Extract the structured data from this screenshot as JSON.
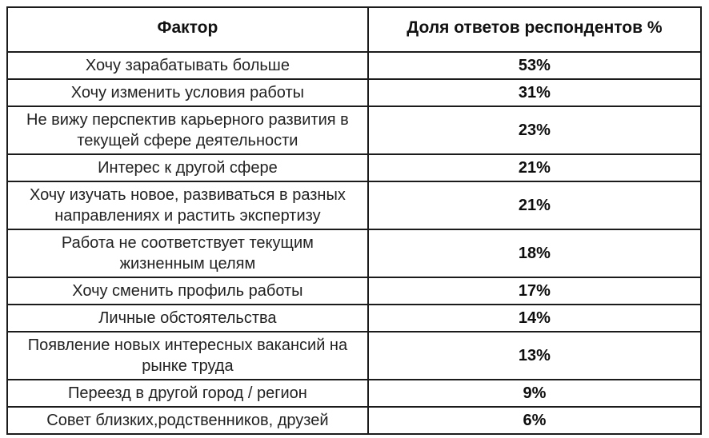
{
  "colors": {
    "border": "#1b1b1b",
    "text": "#111111",
    "background": "#ffffff"
  },
  "table": {
    "columns": {
      "factor": "Фактор",
      "value": "Доля ответов респондентов %"
    },
    "rows": [
      {
        "factor": "Хочу зарабатывать больше",
        "value": "53%"
      },
      {
        "factor": "Хочу изменить условия работы",
        "value": "31%"
      },
      {
        "factor": "Не вижу перспектив карьерного развития в текущей сфере деятельности",
        "value": "23%"
      },
      {
        "factor": "Интерес к другой сфере",
        "value": "21%"
      },
      {
        "factor": "Хочу изучать новое, развиваться в разных направлениях и растить экспертизу",
        "value": "21%"
      },
      {
        "factor": "Работа не соответствует текущим жизненным целям",
        "value": "18%"
      },
      {
        "factor": "Хочу сменить профиль работы",
        "value": "17%"
      },
      {
        "factor": "Личные обстоятельства",
        "value": "14%"
      },
      {
        "factor": "Появление новых интересных вакансий на рынке труда",
        "value": "13%"
      },
      {
        "factor": "Переезд в другой город / регион",
        "value": "9%"
      },
      {
        "factor": "Совет близких,родственников, друзей",
        "value": "6%"
      }
    ]
  },
  "chart_data": {
    "type": "table",
    "columns": [
      "Фактор",
      "Доля ответов респондентов %"
    ],
    "rows": [
      [
        "Хочу зарабатывать больше",
        "53%"
      ],
      [
        "Хочу изменить условия работы",
        "31%"
      ],
      [
        "Не вижу перспектив карьерного развития в текущей сфере деятельности",
        "23%"
      ],
      [
        "Интерес к другой сфере",
        "21%"
      ],
      [
        "Хочу изучать новое, развиваться в разных направлениях и растить экспертизу",
        "21%"
      ],
      [
        "Работа не соответствует текущим жизненным целям",
        "18%"
      ],
      [
        "Хочу сменить профиль работы",
        "17%"
      ],
      [
        "Личные обстоятельства",
        "14%"
      ],
      [
        "Появление новых интересных вакансий на рынке труда",
        "13%"
      ],
      [
        "Переезд в другой город / регион",
        "9%"
      ],
      [
        "Совет близких,родственников, друзей",
        "6%"
      ]
    ],
    "values_numeric": [
      53,
      31,
      23,
      21,
      21,
      18,
      17,
      14,
      13,
      9,
      6
    ],
    "value_unit": "percent",
    "grid": true,
    "legend": false
  }
}
